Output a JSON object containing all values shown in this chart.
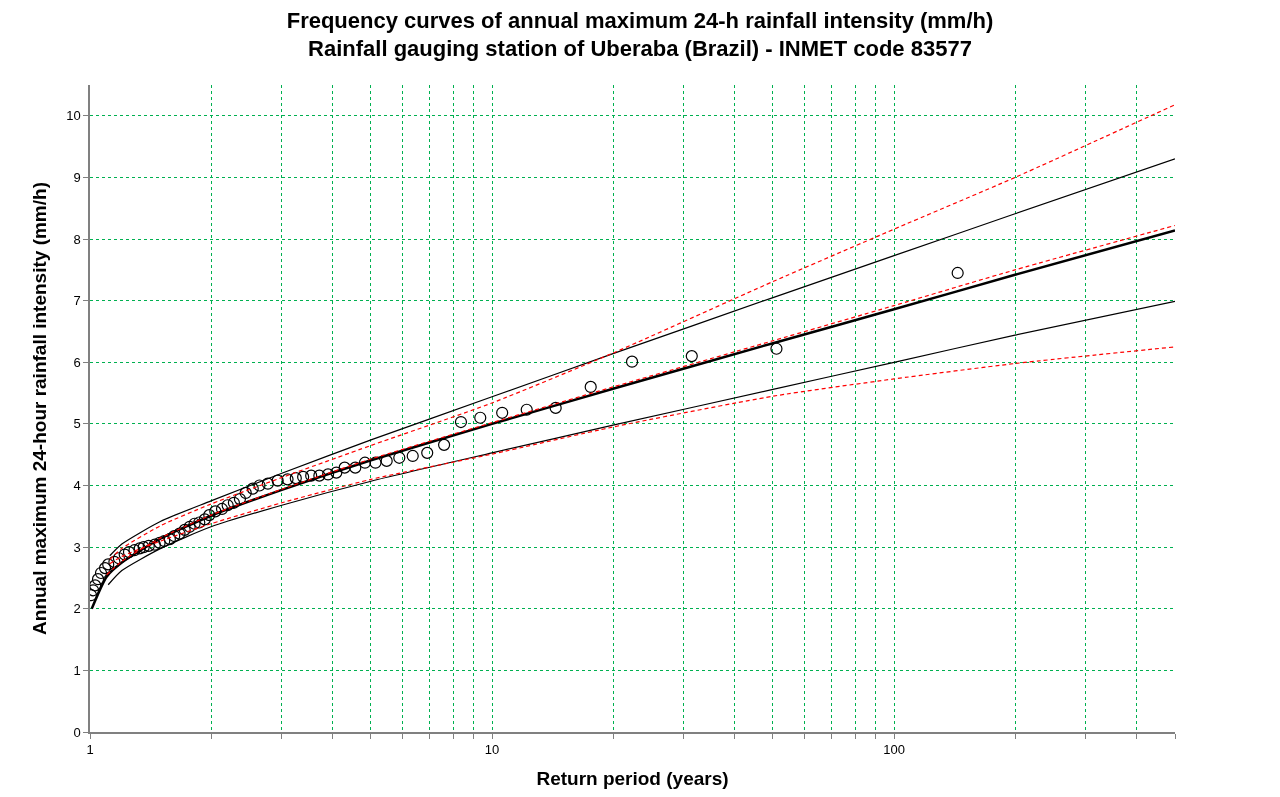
{
  "chart_data": {
    "type": "scatter",
    "title": "Frequency curves of annual maximum 24-h rainfall intensity (mm/h)\nRainfall gauging station of Uberaba (Brazil) - INMET code 83577",
    "xlabel": "Return period (years)",
    "ylabel": "Annual maximum 24-hour rainfall intensity (mm/h)",
    "log": "x",
    "grid": true,
    "xlim": [
      1,
      500
    ],
    "ylim": [
      0,
      10.5
    ],
    "xticks": [
      1,
      {
        "value": 2,
        "label": null
      },
      {
        "value": 3,
        "label": null
      },
      {
        "value": 4,
        "label": null
      },
      {
        "value": 5,
        "label": null
      },
      {
        "value": 6,
        "label": null
      },
      {
        "value": 7,
        "label": null
      },
      {
        "value": 8,
        "label": null
      },
      {
        "value": 9,
        "label": null
      },
      10,
      {
        "value": 20,
        "label": null
      },
      {
        "value": 30,
        "label": null
      },
      {
        "value": 40,
        "label": null
      },
      {
        "value": 50,
        "label": null
      },
      {
        "value": 60,
        "label": null
      },
      {
        "value": 70,
        "label": null
      },
      {
        "value": 80,
        "label": null
      },
      {
        "value": 90,
        "label": null
      },
      100,
      {
        "value": 200,
        "label": null
      },
      {
        "value": 300,
        "label": null
      },
      {
        "value": 400,
        "label": null
      },
      {
        "value": 500,
        "label": null
      }
    ],
    "yticks": [
      0,
      1,
      2,
      3,
      4,
      5,
      6,
      7,
      8,
      9,
      10
    ],
    "series": [
      {
        "type": "line",
        "color": "#ff0000",
        "line_style": "dashed",
        "marker": "none",
        "x": [
          1.12,
          1.2,
          1.5,
          2,
          3,
          5,
          10,
          20,
          50,
          100,
          200,
          500
        ],
        "values": [
          2.8,
          2.98,
          3.35,
          3.7,
          4.13,
          4.65,
          5.34,
          6.15,
          7.31,
          8.16,
          9.0,
          10.18
        ]
      },
      {
        "type": "line",
        "color": "#ff0000",
        "line_style": "dashed",
        "marker": "none",
        "x": [
          1.1,
          1.2,
          1.5,
          2,
          3,
          5,
          10,
          20,
          50,
          100,
          200,
          500
        ],
        "values": [
          2.55,
          2.77,
          3.15,
          3.52,
          3.94,
          4.43,
          5.02,
          5.6,
          6.35,
          6.92,
          7.5,
          8.22
        ]
      },
      {
        "type": "line",
        "color": "#ff0000",
        "line_style": "dashed",
        "marker": "none",
        "x": [
          1.12,
          1.2,
          1.5,
          2,
          3,
          5,
          10,
          20,
          50,
          100,
          200,
          500
        ],
        "values": [
          2.73,
          2.85,
          3.1,
          3.38,
          3.72,
          4.1,
          4.51,
          4.95,
          5.45,
          5.73,
          5.98,
          6.25
        ]
      },
      {
        "type": "line",
        "color": "#000000",
        "line_style": "solid",
        "marker": "none",
        "x": [
          1.12,
          1.2,
          1.5,
          2,
          3,
          5,
          10,
          20,
          50,
          100,
          200,
          500
        ],
        "values": [
          2.86,
          3.05,
          3.42,
          3.75,
          4.2,
          4.74,
          5.44,
          6.14,
          7.05,
          7.73,
          8.41,
          9.3
        ]
      },
      {
        "type": "line",
        "color": "#000000",
        "line_style": "solid",
        "marker": "none",
        "x": [
          1.11,
          1.2,
          1.5,
          2,
          3,
          5,
          10,
          20,
          50,
          100,
          200,
          500
        ],
        "values": [
          2.39,
          2.62,
          2.98,
          3.33,
          3.68,
          4.07,
          4.53,
          4.98,
          5.56,
          6.0,
          6.44,
          6.99
        ]
      },
      {
        "type": "line",
        "color": "#000000",
        "line_style": "solid",
        "marker": "none",
        "x": [
          1.01,
          1.1,
          1.2,
          1.5,
          2,
          3,
          5,
          10,
          20,
          50,
          100,
          200,
          500
        ],
        "values": [
          2.0,
          2.52,
          2.75,
          3.14,
          3.51,
          3.93,
          4.41,
          5.0,
          5.57,
          6.31,
          6.86,
          7.42,
          8.14
        ]
      },
      {
        "color": "#000000",
        "marker": "circle",
        "x": [
          1.006,
          1.018,
          1.03,
          1.047,
          1.065,
          1.09,
          1.11,
          1.15,
          1.18,
          1.22,
          1.25,
          1.29,
          1.33,
          1.36,
          1.4,
          1.45,
          1.49,
          1.53,
          1.58,
          1.62,
          1.67,
          1.72,
          1.77,
          1.82,
          1.87,
          1.93,
          1.98,
          2.05,
          2.13,
          2.2,
          2.28,
          2.36,
          2.44,
          2.54,
          2.64,
          2.77,
          2.93,
          3.1,
          3.25,
          3.39,
          3.55,
          3.72,
          3.91,
          4.1,
          4.3,
          4.57,
          4.83,
          5.13,
          5.47,
          5.88,
          6.35,
          6.9,
          7.6,
          8.37,
          9.35,
          10.6,
          12.2,
          14.4,
          17.6,
          22.3,
          31.4,
          51,
          144
        ],
        "values": [
          2.22,
          2.3,
          2.38,
          2.48,
          2.58,
          2.66,
          2.72,
          2.76,
          2.82,
          2.88,
          2.92,
          2.95,
          2.98,
          3.0,
          3.02,
          3.04,
          3.07,
          3.1,
          3.13,
          3.18,
          3.22,
          3.28,
          3.33,
          3.38,
          3.4,
          3.45,
          3.52,
          3.58,
          3.62,
          3.68,
          3.72,
          3.78,
          3.88,
          3.95,
          4.0,
          4.03,
          4.08,
          4.1,
          4.12,
          4.14,
          4.16,
          4.16,
          4.18,
          4.21,
          4.29,
          4.29,
          4.37,
          4.37,
          4.4,
          4.45,
          4.48,
          4.53,
          4.66,
          5.03,
          5.1,
          5.18,
          5.23,
          5.26,
          5.6,
          6.01,
          6.1,
          6.22,
          7.45
        ]
      }
    ]
  }
}
